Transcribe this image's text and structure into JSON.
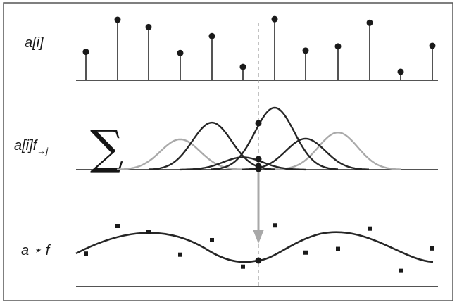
{
  "labels": {
    "row1": "a[i]",
    "row2_main": "a[i]f",
    "row2_sub": "→j",
    "row3": "a ⋆ f",
    "sigma": "∑"
  },
  "colors": {
    "ink": "#1a1a1a",
    "curve_dark": "#262626",
    "curve_light": "#aaaaaa",
    "arrow": "#a8a8a8",
    "dashed": "#999999",
    "frame": "#555555"
  },
  "samples": [
    0.47,
    1.0,
    0.88,
    0.45,
    0.73,
    0.22,
    1.01,
    0.49,
    0.56,
    0.95,
    0.14,
    0.57
  ],
  "current_sample_index": 6,
  "kernels": [
    {
      "center_index": 3,
      "weight": 0.49,
      "tone": "light"
    },
    {
      "center_index": 4,
      "weight": 0.76,
      "tone": "dark"
    },
    {
      "center_index": 5,
      "weight": 0.2,
      "tone": "dark"
    },
    {
      "center_index": 6,
      "weight": 1.0,
      "tone": "dark"
    },
    {
      "center_index": 7,
      "weight": 0.5,
      "tone": "dark"
    },
    {
      "center_index": 8,
      "weight": 0.6,
      "tone": "light"
    }
  ]
}
